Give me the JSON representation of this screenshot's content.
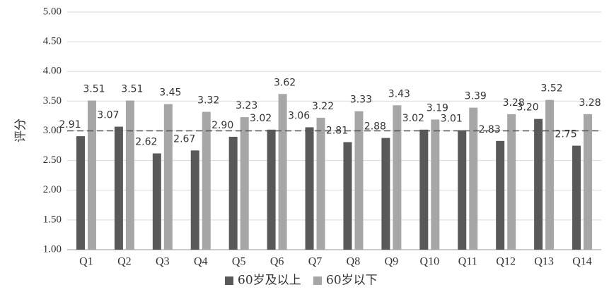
{
  "chart_data": {
    "type": "bar",
    "categories": [
      "Q1",
      "Q2",
      "Q3",
      "Q4",
      "Q5",
      "Q6",
      "Q7",
      "Q8",
      "Q9",
      "Q10",
      "Q11",
      "Q12",
      "Q13",
      "Q14"
    ],
    "series": [
      {
        "name": "60岁及以上",
        "color": "#595959",
        "values": [
          2.91,
          3.07,
          2.62,
          2.67,
          2.9,
          3.02,
          3.06,
          2.81,
          2.88,
          3.02,
          3.01,
          2.83,
          3.2,
          2.75
        ],
        "labels": [
          "2.91",
          "3.07",
          "2.62",
          "2.67",
          "2.90",
          "3.02",
          "3.06",
          "2.81",
          "2.88",
          "3.02",
          "3.01",
          "2.83",
          "3.20",
          "2.75"
        ]
      },
      {
        "name": "60岁以下",
        "color": "#a6a6a6",
        "values": [
          3.51,
          3.51,
          3.45,
          3.32,
          3.23,
          3.62,
          3.22,
          3.33,
          3.43,
          3.19,
          3.39,
          3.28,
          3.52,
          3.28
        ],
        "labels": [
          "3.51",
          "3.51",
          "3.45",
          "3.32",
          "3.23",
          "3.62",
          "3.22",
          "3.33",
          "3.43",
          "3.19",
          "3.39",
          "3.28",
          "3.52",
          "3.28"
        ]
      }
    ],
    "ylabel": "评分",
    "ylim": [
      1.0,
      5.0
    ],
    "yticks": [
      "1.00",
      "1.50",
      "2.00",
      "2.50",
      "3.00",
      "3.50",
      "4.00",
      "4.50",
      "5.00"
    ],
    "reference_line": 3.0,
    "grid": true,
    "legend_position": "bottom"
  }
}
